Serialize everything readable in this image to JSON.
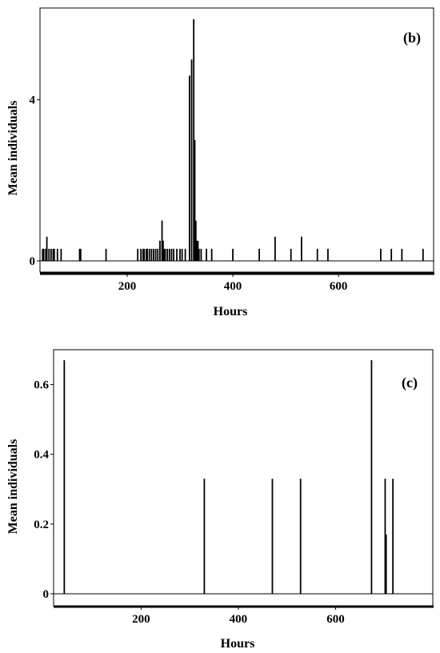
{
  "chart_data": [
    {
      "type": "bar",
      "panel_label": "(b)",
      "xlabel": "Hours",
      "ylabel": "Mean individuals",
      "xticks": [
        200,
        400,
        600
      ],
      "yticks": [
        0,
        4
      ],
      "xlim": [
        35,
        780
      ],
      "ylim": [
        0,
        6
      ],
      "x": [
        40,
        42,
        46,
        48,
        52,
        56,
        60,
        62,
        68,
        75,
        110,
        112,
        160,
        220,
        226,
        230,
        232,
        236,
        238,
        242,
        246,
        250,
        254,
        258,
        262,
        266,
        268,
        270,
        272,
        276,
        280,
        284,
        288,
        294,
        300,
        304,
        310,
        318,
        322,
        326,
        328,
        330,
        332,
        334,
        336,
        340,
        350,
        360,
        400,
        450,
        480,
        510,
        530,
        560,
        580,
        680,
        700,
        720,
        760
      ],
      "values": [
        0.3,
        0.3,
        0.3,
        0.6,
        0.3,
        0.3,
        0.3,
        0.3,
        0.3,
        0.3,
        0.3,
        0.3,
        0.3,
        0.3,
        0.3,
        0.3,
        0.3,
        0.3,
        0.3,
        0.3,
        0.3,
        0.3,
        0.3,
        0.3,
        0.5,
        1.0,
        0.5,
        0.3,
        0.3,
        0.3,
        0.3,
        0.3,
        0.3,
        0.3,
        0.3,
        0.3,
        0.3,
        4.6,
        5.0,
        6.0,
        3.0,
        1.0,
        0.5,
        0.5,
        0.3,
        0.3,
        0.3,
        0.3,
        0.3,
        0.3,
        0.6,
        0.3,
        0.6,
        0.3,
        0.3,
        0.3,
        0.3,
        0.3,
        0.3
      ]
    },
    {
      "type": "bar",
      "panel_label": "(c)",
      "xlabel": "Hours",
      "ylabel": "Mean individuals",
      "xticks": [
        200,
        400,
        600
      ],
      "yticks": [
        0,
        0.2,
        0.4,
        0.6
      ],
      "xlim": [
        20,
        800
      ],
      "ylim": [
        0,
        0.7
      ],
      "x": [
        42,
        330,
        470,
        528,
        674,
        702,
        704,
        718
      ],
      "values": [
        0.67,
        0.33,
        0.33,
        0.33,
        0.67,
        0.33,
        0.17,
        0.33
      ]
    }
  ]
}
